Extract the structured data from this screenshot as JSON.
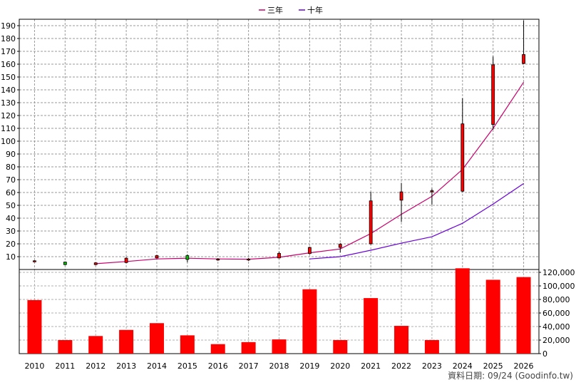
{
  "chart_data": {
    "type": "candlestick+line+bar",
    "legend": {
      "placement": "top-center",
      "items": [
        {
          "label": "三年",
          "color": "#c8006e"
        },
        {
          "label": "十年",
          "color": "#6a00d8"
        }
      ]
    },
    "years": [
      "2010",
      "2011",
      "2012",
      "2013",
      "2014",
      "2015",
      "2016",
      "2017",
      "2018",
      "2019",
      "2020",
      "2021",
      "2022",
      "2023",
      "2024",
      "2025",
      "2026"
    ],
    "price_axis": {
      "ticks": [
        "10",
        "20",
        "30",
        "40",
        "50",
        "60",
        "70",
        "80",
        "90",
        "100",
        "110",
        "120",
        "130",
        "140",
        "150",
        "160",
        "170",
        "180",
        "190"
      ],
      "range": [
        0,
        195
      ],
      "grid": true
    },
    "volume_axis": {
      "ticks": [
        "0",
        "20,000",
        "40,000",
        "60,000",
        "80,000",
        "100,000",
        "120,000"
      ],
      "range": [
        0,
        120000
      ],
      "position": "right"
    },
    "candles": [
      {
        "year": "2010",
        "open": 6.5,
        "close": 6.8,
        "high": 7.2,
        "low": 5.6
      },
      {
        "year": "2011",
        "open": 5.8,
        "close": 3.8,
        "high": 6.2,
        "low": 3.4
      },
      {
        "year": "2012",
        "open": 3.8,
        "close": 5.2,
        "high": 5.6,
        "low": 3.4
      },
      {
        "year": "2013",
        "open": 5.4,
        "close": 8.8,
        "high": 9.6,
        "low": 5.0
      },
      {
        "year": "2014",
        "open": 9.0,
        "close": 10.8,
        "high": 11.4,
        "low": 8.6
      },
      {
        "year": "2015",
        "open": 10.8,
        "close": 7.8,
        "high": 11.8,
        "low": 5.6
      },
      {
        "year": "2016",
        "open": 8.0,
        "close": 8.2,
        "high": 8.8,
        "low": 6.8
      },
      {
        "year": "2017",
        "open": 7.8,
        "close": 8.2,
        "high": 9.0,
        "low": 6.6
      },
      {
        "year": "2018",
        "open": 9.0,
        "close": 12.6,
        "high": 13.8,
        "low": 8.6
      },
      {
        "year": "2019",
        "open": 12.4,
        "close": 17.2,
        "high": 17.8,
        "low": 11.8
      },
      {
        "year": "2020",
        "open": 17.2,
        "close": 19.6,
        "high": 20.6,
        "low": 13.4
      },
      {
        "year": "2021",
        "open": 20.0,
        "close": 53.5,
        "high": 60.5,
        "low": 19.4
      },
      {
        "year": "2022",
        "open": 54.0,
        "close": 60.5,
        "high": 67.5,
        "low": 37.0
      },
      {
        "year": "2023",
        "open": 60.6,
        "close": 61.4,
        "high": 63.0,
        "low": 50.6
      },
      {
        "year": "2024",
        "open": 61.0,
        "close": 113.5,
        "high": 133.5,
        "low": 60.4
      },
      {
        "year": "2025",
        "open": 113.0,
        "close": 159.5,
        "high": 166.0,
        "low": 109.0
      },
      {
        "year": "2026",
        "open": 160.5,
        "close": 167.5,
        "high": 194.0,
        "low": 160.0
      }
    ],
    "ma_lines": [
      {
        "label": "三年",
        "color": "#c8006e",
        "years": [
          "2012",
          "2013",
          "2014",
          "2015",
          "2016",
          "2017",
          "2018",
          "2019",
          "2020",
          "2021",
          "2022",
          "2023",
          "2024",
          "2025",
          "2026"
        ],
        "values": [
          4.5,
          6.2,
          8.2,
          8.8,
          8.2,
          8.0,
          9.5,
          13.0,
          16.0,
          28.0,
          43.0,
          57.0,
          78.0,
          110.0,
          146.0
        ]
      },
      {
        "label": "十年",
        "color": "#6a00d8",
        "years": [
          "2019",
          "2020",
          "2021",
          "2022",
          "2023",
          "2024",
          "2025",
          "2026"
        ],
        "values": [
          8.2,
          10.0,
          15.0,
          20.5,
          25.5,
          36.0,
          51.0,
          67.0
        ]
      }
    ],
    "volume": [
      79000,
      20000,
      26000,
      35000,
      45000,
      27000,
      14000,
      17000,
      21000,
      95000,
      20000,
      82000,
      41000,
      20000,
      126000,
      109000,
      113000
    ],
    "footer": "資料日期: 09/24  (Goodinfo.tw)"
  }
}
